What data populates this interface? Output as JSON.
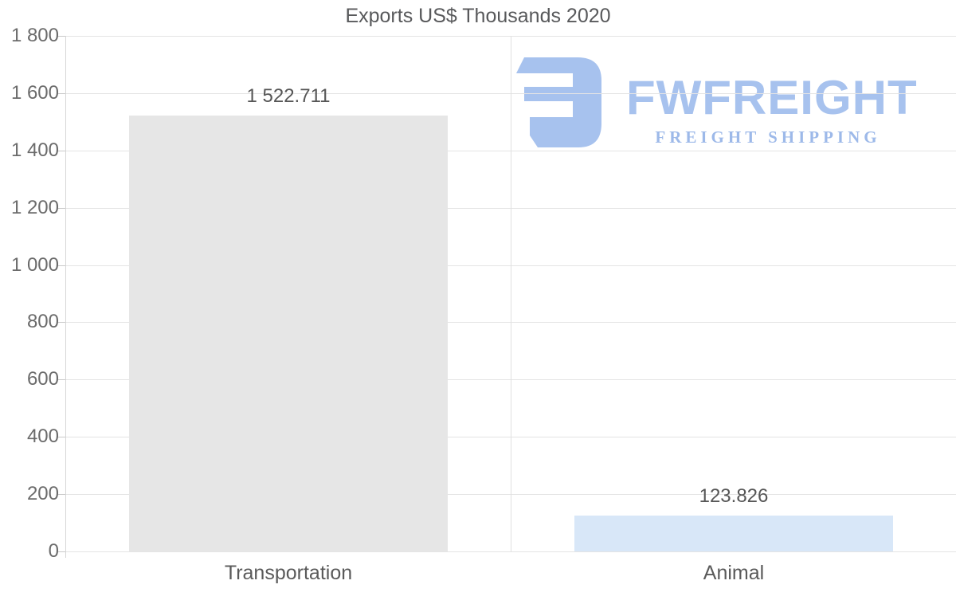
{
  "chart_data": {
    "type": "bar",
    "title": "Exports US$ Thousands 2020",
    "categories": [
      "Transportation",
      "Animal"
    ],
    "values": [
      1522.711,
      123.826
    ],
    "value_labels": [
      "1 522.711",
      "123.826"
    ],
    "bar_colors": [
      "#e6e6e6",
      "#d8e7f8"
    ],
    "xlabel": "",
    "ylabel": "",
    "ylim": [
      0,
      1800
    ],
    "yticks": [
      {
        "v": 0,
        "label": "0"
      },
      {
        "v": 200,
        "label": "200"
      },
      {
        "v": 400,
        "label": "400"
      },
      {
        "v": 600,
        "label": "600"
      },
      {
        "v": 800,
        "label": "800"
      },
      {
        "v": 1000,
        "label": "1 000"
      },
      {
        "v": 1200,
        "label": "1 200"
      },
      {
        "v": 1400,
        "label": "1 400"
      },
      {
        "v": 1600,
        "label": "1 600"
      },
      {
        "v": 1800,
        "label": "1 800"
      }
    ],
    "grid": "horizontal gridlines on, vertical category separator on",
    "legend": "none"
  },
  "logo": {
    "wordmark": "FWFREIGHT",
    "tagline": "FREIGHT SHIPPING",
    "icon": "fwfreight-f-mark",
    "color_primary": "#a7c2ee",
    "color_tagline": "#9db9e9"
  },
  "colors": {
    "background": "#ffffff",
    "gridline": "#e4e4e4",
    "axis": "#d6d6d6",
    "title_text": "#58595b",
    "tick_text": "#6b6b6b",
    "value_text": "#565656",
    "category_text": "#5a5a5a"
  }
}
